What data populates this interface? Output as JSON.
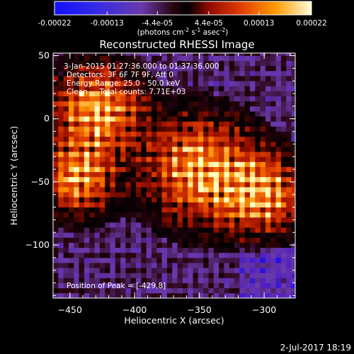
{
  "colorbar": {
    "ticks": [
      "-0.00022",
      "-0.00013",
      "-4.4e-05",
      "4.4e-05",
      "0.00013",
      "0.00022"
    ],
    "tick_values": [
      -0.00022,
      -0.00013,
      -4.4e-05,
      4.4e-05,
      0.00013,
      0.00022
    ],
    "range": [
      -0.00022,
      0.00022
    ],
    "units_parts": [
      "(photons cm",
      "-2",
      " s",
      "-1",
      " asec",
      "-2",
      ")"
    ]
  },
  "chart_data": {
    "type": "heatmap",
    "title": "Reconstructed RHESSI Image",
    "xlabel": "Heliocentric X (arcsec)",
    "ylabel": "Heliocentric Y (arcsec)",
    "xlim": [
      -463,
      -276
    ],
    "ylim": [
      -142,
      52
    ],
    "xticks": [
      -450,
      -400,
      -350,
      -300
    ],
    "yticks": [
      50,
      0,
      -50,
      -100
    ],
    "pixel_size_arcsec": 4,
    "colormap": [
      "#0000ff",
      "#5020c0",
      "#6a3aaa",
      "#2a0410",
      "#000000",
      "#a01000",
      "#e04000",
      "#ff9000",
      "#ffffc0"
    ],
    "bright_sources": [
      {
        "x": -429,
        "y": 8
      },
      {
        "x": -445,
        "y": -48
      },
      {
        "x": -350,
        "y": -40
      },
      {
        "x": -300,
        "y": -60
      }
    ],
    "annotations": [
      "3-Jan-2015 01:27:36.000 to 01:37:36.000",
      "Detectors: 3F 6F 7F 9F, Att 0",
      "Energy Range: 25.0 - 50.0 keV",
      "Clean     Total counts: 7.71E+03",
      "Position of Peak = [-429,8]"
    ]
  },
  "timestamp": "2-Jul-2017 18:19"
}
